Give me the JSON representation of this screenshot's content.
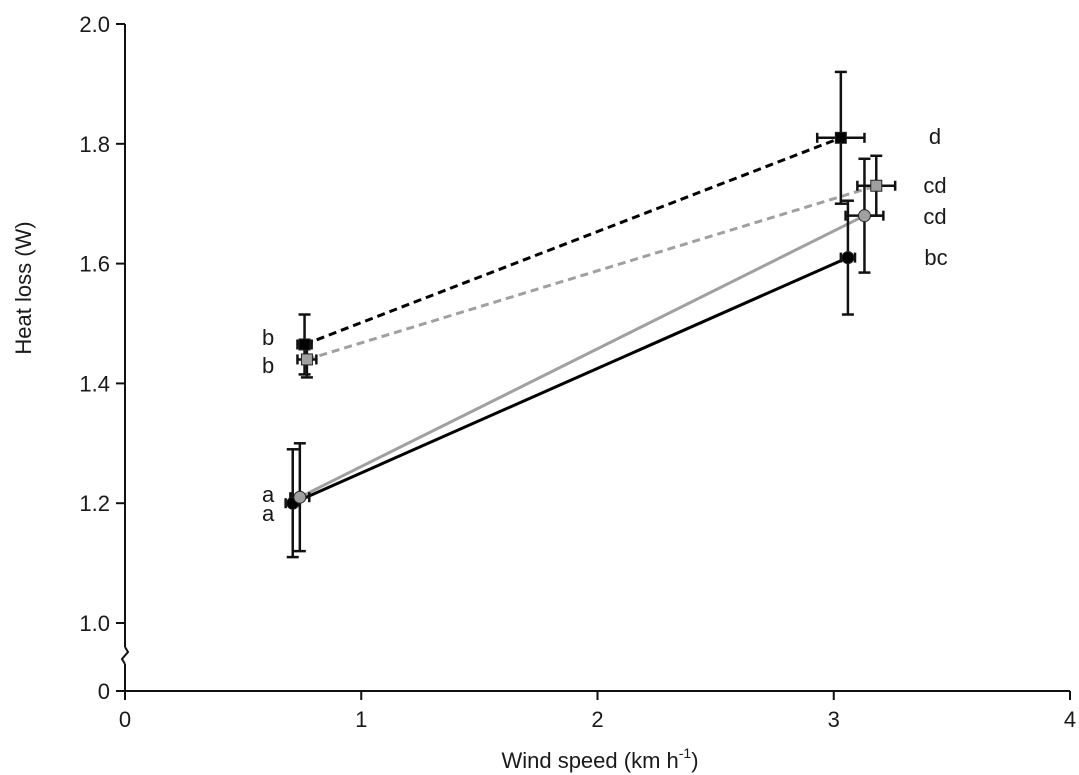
{
  "chart_data": {
    "type": "scatter",
    "title": "",
    "xlabel": "Wind speed (km h",
    "xlabel_sup": "-1",
    "xlabel_close": ")",
    "ylabel": "Heat loss (W)",
    "xlim": [
      0,
      4
    ],
    "ylim": [
      1.0,
      2.0
    ],
    "y_axis_break": true,
    "x_ticks": [
      "0",
      "1",
      "2",
      "3",
      "4"
    ],
    "y_ticks": [
      "2.0",
      "1.8",
      "1.6",
      "1.4",
      "1.2",
      "1.0"
    ],
    "y_break_tick": "0",
    "grid": false,
    "series": [
      {
        "line_color": "#000000",
        "line_style": "dashed",
        "marker": "square",
        "marker_fill": "#000000",
        "points": [
          {
            "x": 0.76,
            "y": 1.465,
            "xerr": 0.03,
            "yerr": 0.05,
            "label": "b"
          },
          {
            "x": 3.03,
            "y": 1.81,
            "xerr": 0.1,
            "yerr": 0.11,
            "label": "d"
          }
        ]
      },
      {
        "line_color": "#a0a0a0",
        "line_style": "dashed",
        "marker": "square",
        "marker_fill": "#a0a0a0",
        "points": [
          {
            "x": 0.77,
            "y": 1.44,
            "xerr": 0.04,
            "yerr": 0.03,
            "label": "b"
          },
          {
            "x": 3.18,
            "y": 1.73,
            "xerr": 0.08,
            "yerr": 0.05,
            "label": "cd"
          }
        ]
      },
      {
        "line_color": "#000000",
        "line_style": "solid",
        "marker": "circle",
        "marker_fill": "#000000",
        "points": [
          {
            "x": 0.71,
            "y": 1.2,
            "xerr": 0.03,
            "yerr": 0.09,
            "label": "a"
          },
          {
            "x": 3.06,
            "y": 1.61,
            "xerr": 0.03,
            "yerr": 0.095,
            "label": "bc"
          }
        ]
      },
      {
        "line_color": "#a0a0a0",
        "line_style": "solid",
        "marker": "circle",
        "marker_fill": "#a0a0a0",
        "points": [
          {
            "x": 0.74,
            "y": 1.21,
            "xerr": 0.04,
            "yerr": 0.09,
            "label": "a"
          },
          {
            "x": 3.13,
            "y": 1.68,
            "xerr": 0.08,
            "yerr": 0.095,
            "label": "cd"
          }
        ]
      }
    ]
  }
}
